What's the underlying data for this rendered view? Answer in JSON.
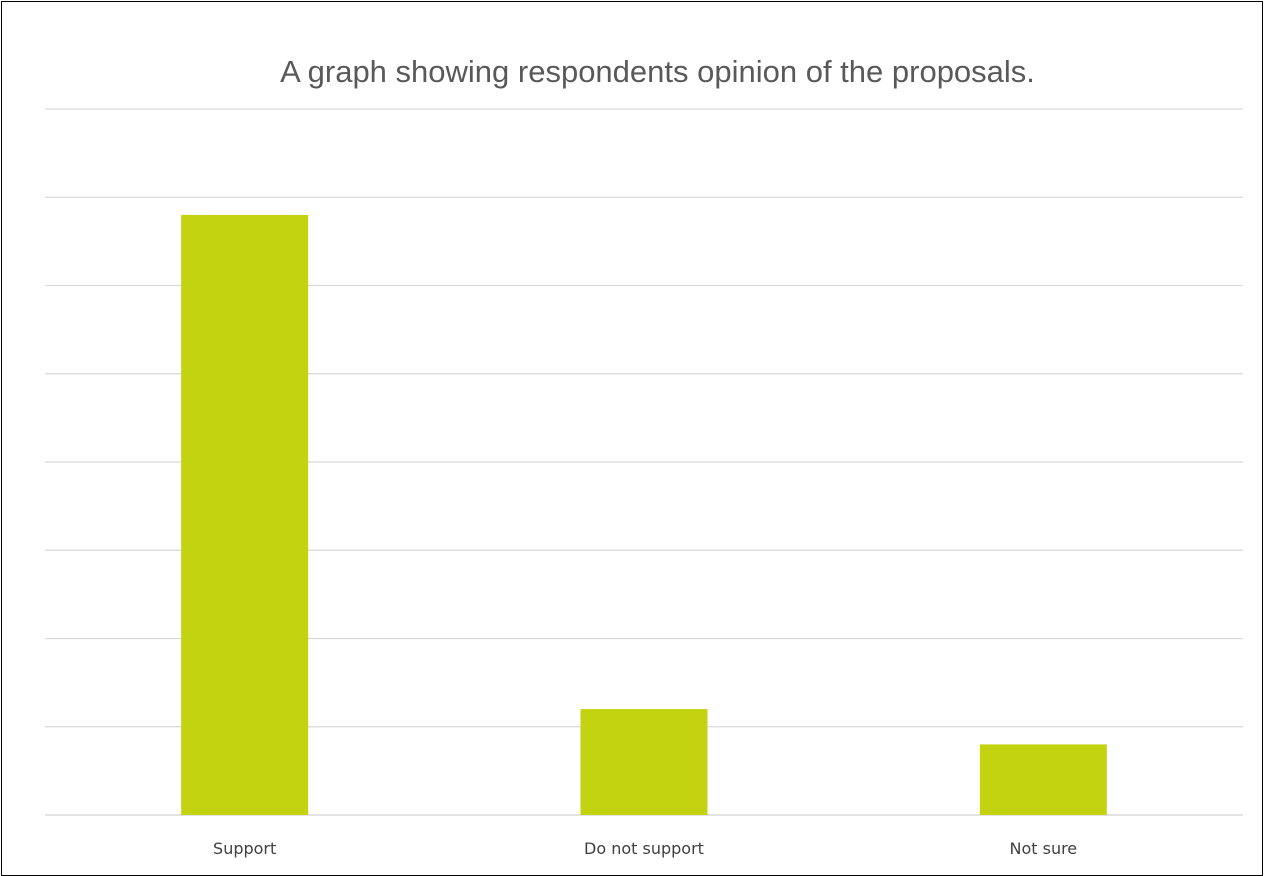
{
  "chart_data": {
    "type": "bar",
    "title": "A graph showing respondents opinion of the proposals.",
    "categories": [
      "Support",
      "Do not support",
      "Not sure"
    ],
    "series": [
      {
        "values": [
          68,
          12,
          8
        ]
      }
    ],
    "ylim": [
      0,
      80
    ],
    "grid": true,
    "legend": "none",
    "bar_color": "#c3d30f",
    "grid_color": "#d9d9d9",
    "axis_color": "#d0d0d0"
  }
}
